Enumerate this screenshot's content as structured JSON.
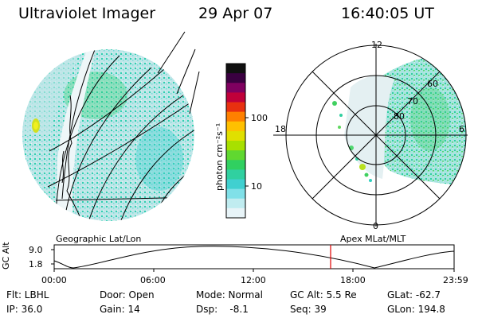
{
  "header": {
    "instrument": "Ultraviolet Imager",
    "date": "29 Apr 07",
    "time": "16:40:05 UT"
  },
  "left_panel": {
    "projection_label": "Geographic Lat/Lon"
  },
  "right_panel": {
    "projection_label": "Apex  MLat/MLT",
    "mlt_labels": [
      "12",
      "18",
      "6",
      "0"
    ],
    "lat_labels": [
      "60",
      "70",
      "80"
    ]
  },
  "colorbar": {
    "unit_label": "photon cm⁻²s⁻¹",
    "tick_labels": [
      "100",
      "10"
    ],
    "colors": [
      "#101010",
      "#3a0040",
      "#800060",
      "#c0003a",
      "#e83010",
      "#ff8000",
      "#ffc000",
      "#e0e000",
      "#a8e000",
      "#60d830",
      "#30d060",
      "#30d0a0",
      "#40d0d0",
      "#80e0e8",
      "#c0ecf0",
      "#e8f4f8"
    ]
  },
  "altitude_plot": {
    "ylabel": "GC Alt",
    "y_ticks": [
      "9.0",
      "1.8"
    ],
    "x_ticks": [
      "00:00",
      "06:00",
      "12:00",
      "18:00",
      "23:59"
    ],
    "current_time_marker_color": "#e00000"
  },
  "info": {
    "filter": "Flt: LBHL",
    "door": "Door: Open",
    "mode": "Mode: Normal",
    "gc_alt": "GC Alt: 5.5 Re",
    "glat": "GLat: -62.7",
    "ip": "IP: 36.0",
    "gain": "Gain: 14",
    "dsp": "Dsp:    -8.1",
    "seq": "Seq: 39",
    "glon": "GLon: 194.8"
  },
  "palette": {
    "base": "#c8e4ea",
    "cyan": "#30d0c0",
    "green": "#40d060",
    "yellowgreen": "#b8e020"
  }
}
